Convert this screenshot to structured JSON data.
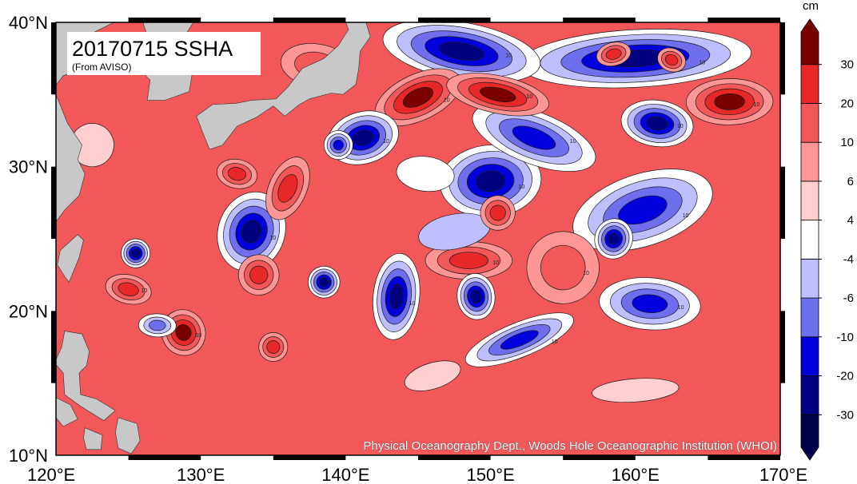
{
  "map": {
    "title": "20170715 SSHA",
    "source_note": "(From AVISO)",
    "credit": "Physical Oceanography Dept., Woods Hole Oceanographic Institution (WHOI)",
    "extent": {
      "lon": [
        120,
        170
      ],
      "lat": [
        10,
        40
      ]
    },
    "lat_ticks": [
      "10°N",
      "20°N",
      "30°N",
      "40°N"
    ],
    "lon_ticks": [
      "120°E",
      "130°E",
      "140°E",
      "150°E",
      "160°E",
      "170°E"
    ],
    "land_color": "#c8c8c8",
    "ocean_base_color": "#f2585a",
    "contour_label": "10",
    "eddies": [
      {
        "lon": 145,
        "lat": 34.8,
        "r": 3.2,
        "ry": 1.6,
        "v": 34
      },
      {
        "lon": 150.5,
        "lat": 35.0,
        "r": 3.6,
        "ry": 1.3,
        "v": 33
      },
      {
        "lon": 166.5,
        "lat": 34.5,
        "r": 3.0,
        "ry": 1.6,
        "v": 32
      },
      {
        "lon": 158.5,
        "lat": 37.8,
        "r": 1.2,
        "ry": 0.8,
        "v": 30
      },
      {
        "lon": 162.5,
        "lat": 37.4,
        "r": 1.0,
        "ry": 0.8,
        "v": 26
      },
      {
        "lon": 148.0,
        "lat": 38.0,
        "r": 5.5,
        "ry": 2.0,
        "v": -34
      },
      {
        "lon": 160.0,
        "lat": 37.5,
        "r": 8.0,
        "ry": 2.0,
        "v": -28
      },
      {
        "lon": 141.2,
        "lat": 32.0,
        "r": 2.5,
        "ry": 1.8,
        "v": -33
      },
      {
        "lon": 153.0,
        "lat": 32.0,
        "r": 4.5,
        "ry": 1.8,
        "v": -22
      },
      {
        "lon": 161.5,
        "lat": 33.0,
        "r": 2.5,
        "ry": 1.6,
        "v": -30
      },
      {
        "lon": 150.0,
        "lat": 29.0,
        "r": 3.5,
        "ry": 2.5,
        "v": -25
      },
      {
        "lon": 160.5,
        "lat": 27.0,
        "r": 5.0,
        "ry": 2.5,
        "v": -22
      },
      {
        "lon": 133.5,
        "lat": 25.5,
        "r": 2.3,
        "ry": 2.8,
        "v": -30
      },
      {
        "lon": 143.5,
        "lat": 21.0,
        "r": 1.6,
        "ry": 3.0,
        "v": -27
      },
      {
        "lon": 149.0,
        "lat": 21.0,
        "r": 1.3,
        "ry": 1.6,
        "v": -30
      },
      {
        "lon": 138.5,
        "lat": 22.0,
        "r": 1.1,
        "ry": 1.1,
        "v": -32
      },
      {
        "lon": 158.5,
        "lat": 25.0,
        "r": 1.3,
        "ry": 1.4,
        "v": -33
      },
      {
        "lon": 161.0,
        "lat": 20.5,
        "r": 3.5,
        "ry": 1.8,
        "v": -20
      },
      {
        "lon": 125.5,
        "lat": 24.0,
        "r": 1.0,
        "ry": 1.0,
        "v": -26
      },
      {
        "lon": 152.0,
        "lat": 18.0,
        "r": 4.0,
        "ry": 1.2,
        "v": -15
      },
      {
        "lon": 139.5,
        "lat": 31.5,
        "r": 1.0,
        "ry": 1.0,
        "v": -22
      },
      {
        "lon": 127.0,
        "lat": 19.0,
        "r": 1.3,
        "ry": 0.8,
        "v": -14
      },
      {
        "lon": 147.5,
        "lat": 25.5,
        "r": 2.5,
        "ry": 1.2,
        "v": -5
      },
      {
        "lon": 128.8,
        "lat": 18.5,
        "r": 1.5,
        "ry": 1.6,
        "v": 34
      },
      {
        "lon": 125.0,
        "lat": 21.5,
        "r": 1.6,
        "ry": 1.0,
        "v": 30
      },
      {
        "lon": 148.5,
        "lat": 23.5,
        "r": 3.0,
        "ry": 1.3,
        "v": 28
      },
      {
        "lon": 150.5,
        "lat": 26.8,
        "r": 1.2,
        "ry": 1.2,
        "v": 27
      },
      {
        "lon": 136.0,
        "lat": 28.5,
        "r": 1.3,
        "ry": 2.3,
        "v": 27
      },
      {
        "lon": 132.5,
        "lat": 29.5,
        "r": 1.4,
        "ry": 1.0,
        "v": 29
      },
      {
        "lon": 135.0,
        "lat": 17.5,
        "r": 1.0,
        "ry": 1.0,
        "v": 29
      },
      {
        "lon": 134.0,
        "lat": 22.5,
        "r": 1.4,
        "ry": 1.4,
        "v": 22
      },
      {
        "lon": 155.0,
        "lat": 23.0,
        "r": 2.5,
        "ry": 2.5,
        "v": 14
      },
      {
        "lon": 138.0,
        "lat": 37.0,
        "r": 2.5,
        "ry": 1.5,
        "v": 18
      },
      {
        "lon": 160.0,
        "lat": 14.5,
        "r": 3.0,
        "ry": 0.8,
        "v": 4
      },
      {
        "lon": 146.0,
        "lat": 15.5,
        "r": 2.0,
        "ry": 0.9,
        "v": 4
      },
      {
        "lon": 122.5,
        "lat": 31.5,
        "r": 1.5,
        "ry": 1.5,
        "v": 4
      },
      {
        "lon": 145.5,
        "lat": 29.5,
        "r": 2.0,
        "ry": 1.2,
        "v": 3
      }
    ]
  },
  "colorbar": {
    "unit": "cm",
    "tick_labels": [
      "-30",
      "-20",
      "-10",
      "-6",
      "-4",
      "4",
      "6",
      "10",
      "20",
      "30"
    ],
    "colors_bottom_to_top": [
      "#00004a",
      "#000080",
      "#0000dd",
      "#6f6fee",
      "#bfbfff",
      "#ffffff",
      "#ffcfcf",
      "#ff9696",
      "#f2585a",
      "#e82828",
      "#7a0000"
    ]
  }
}
